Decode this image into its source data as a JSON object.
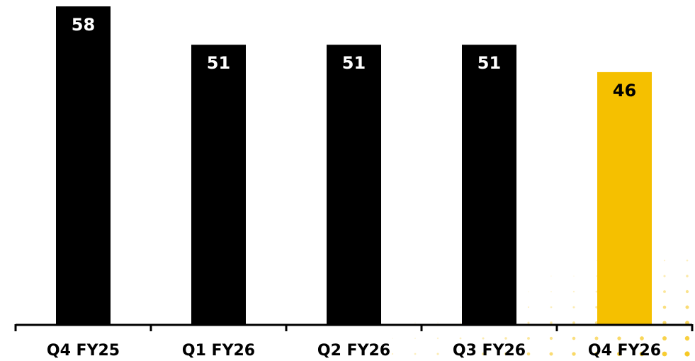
{
  "chart_data": {
    "type": "bar",
    "categories": [
      "Q4 FY25",
      "Q1 FY26",
      "Q2 FY26",
      "Q3 FY26",
      "Q4 FY26"
    ],
    "values": [
      58,
      51,
      51,
      51,
      46
    ],
    "data_labels": [
      "58",
      "51",
      "51",
      "51",
      "46"
    ],
    "title": "",
    "xlabel": "",
    "ylabel": "",
    "ylim": [
      0,
      58
    ],
    "grid": false,
    "legend": "none",
    "colors": {
      "default_bar": "#000000",
      "highlight_bar": "#F5C000",
      "default_label": "#ffffff",
      "highlight_label": "#000000",
      "axis": "#000000",
      "dots": "#F5C000"
    },
    "highlight_index": 4
  }
}
